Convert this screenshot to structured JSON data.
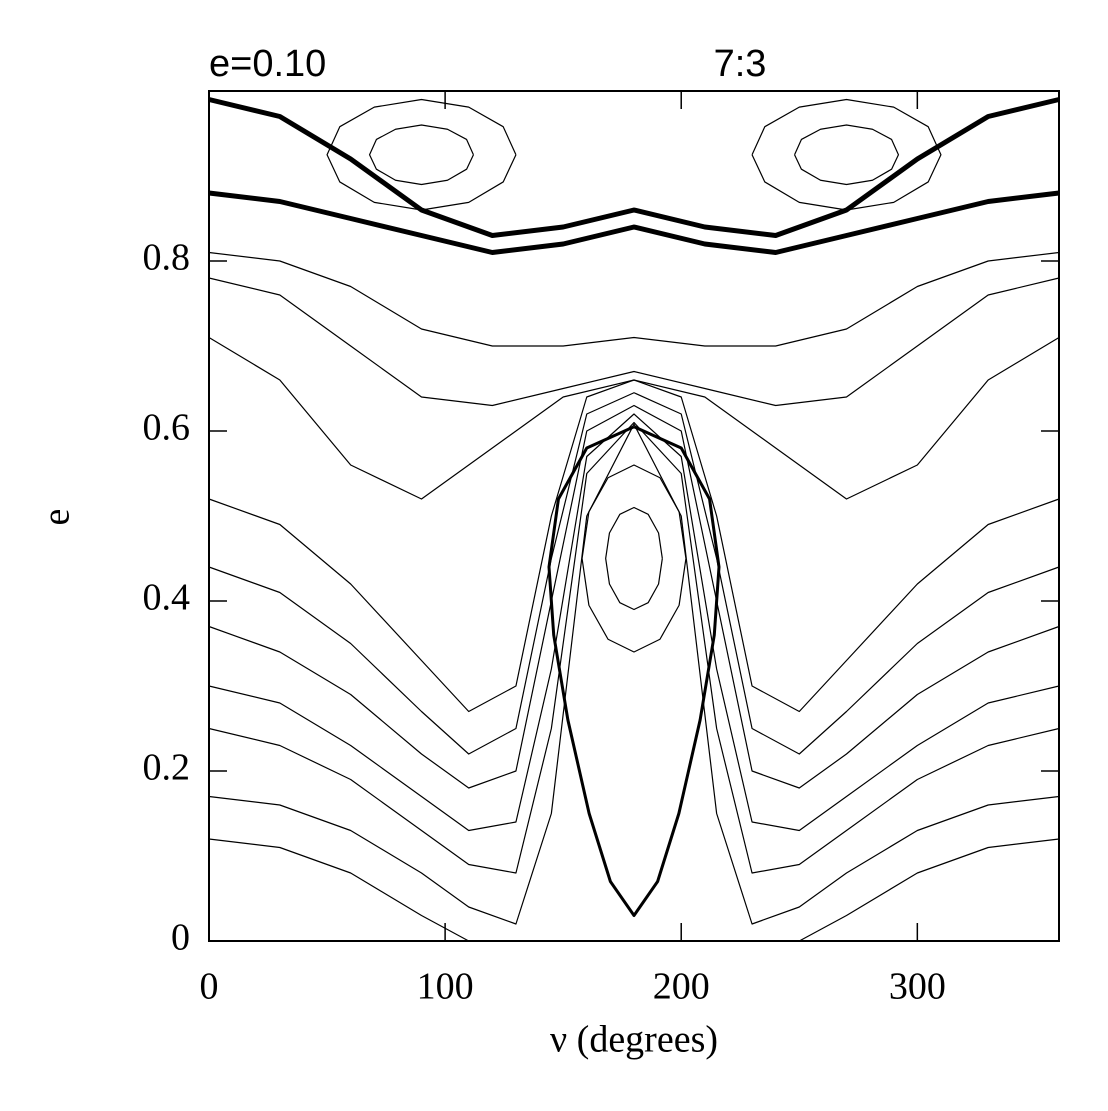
{
  "chart_data": {
    "type": "line",
    "title": "e=0.10",
    "subtitle": "7:3",
    "xlabel": "ν (degrees)",
    "ylabel": "e",
    "xlim": [
      0,
      360
    ],
    "ylim": [
      0,
      1
    ],
    "xticks": [
      0,
      100,
      200,
      300
    ],
    "yticks": [
      0,
      0.2,
      0.4,
      0.6,
      0.8
    ],
    "series": [
      {
        "color": "#000000",
        "x": [
          0,
          30,
          60,
          90,
          120,
          150,
          180,
          210,
          240,
          270,
          300,
          330,
          360
        ],
        "values": [
          0.71,
          0.66,
          0.56,
          0.52,
          0.58,
          0.64,
          0.66,
          0.64,
          0.58,
          0.52,
          0.56,
          0.66,
          0.71
        ]
      },
      {
        "color": "#000000",
        "x": [
          0,
          30,
          60,
          90,
          120,
          150,
          180,
          210,
          240,
          270,
          300,
          330,
          360
        ],
        "values": [
          0.78,
          0.76,
          0.7,
          0.64,
          0.63,
          0.65,
          0.67,
          0.65,
          0.63,
          0.64,
          0.7,
          0.76,
          0.78
        ]
      },
      {
        "color": "#000000",
        "x": [
          0,
          30,
          60,
          90,
          120,
          150,
          180,
          210,
          240,
          270,
          300,
          330,
          360
        ],
        "values": [
          0.81,
          0.8,
          0.77,
          0.72,
          0.7,
          0.7,
          0.71,
          0.7,
          0.7,
          0.72,
          0.77,
          0.8,
          0.81
        ]
      },
      {
        "color": "#000000",
        "width": 5,
        "x": [
          0,
          30,
          60,
          90,
          120,
          150,
          180,
          210,
          240,
          270,
          300,
          330,
          360
        ],
        "values": [
          0.88,
          0.87,
          0.85,
          0.83,
          0.81,
          0.82,
          0.84,
          0.82,
          0.81,
          0.83,
          0.85,
          0.87,
          0.88
        ]
      },
      {
        "color": "#000000",
        "width": 5,
        "x": [
          0,
          30,
          60,
          90,
          120,
          150,
          180,
          210,
          240,
          270,
          300,
          330,
          360
        ],
        "values": [
          0.99,
          0.97,
          0.92,
          0.86,
          0.83,
          0.84,
          0.86,
          0.84,
          0.83,
          0.86,
          0.92,
          0.97,
          0.99
        ]
      },
      {
        "color": "#000000",
        "x": [
          0,
          30,
          60,
          90,
          110,
          130,
          145,
          160,
          180,
          200,
          215,
          230,
          250,
          270,
          300,
          330,
          360
        ],
        "values": [
          0.52,
          0.49,
          0.42,
          0.33,
          0.27,
          0.3,
          0.5,
          0.64,
          0.66,
          0.64,
          0.5,
          0.3,
          0.27,
          0.33,
          0.42,
          0.49,
          0.52
        ]
      },
      {
        "color": "#000000",
        "x": [
          0,
          30,
          60,
          90,
          110,
          130,
          145,
          160,
          180,
          200,
          215,
          230,
          250,
          270,
          300,
          330,
          360
        ],
        "values": [
          0.44,
          0.41,
          0.35,
          0.27,
          0.22,
          0.25,
          0.45,
          0.62,
          0.645,
          0.62,
          0.45,
          0.25,
          0.22,
          0.27,
          0.35,
          0.41,
          0.44
        ]
      },
      {
        "color": "#000000",
        "x": [
          0,
          30,
          60,
          90,
          110,
          130,
          145,
          160,
          180,
          200,
          215,
          230,
          250,
          270,
          300,
          330,
          360
        ],
        "values": [
          0.37,
          0.34,
          0.29,
          0.22,
          0.18,
          0.2,
          0.4,
          0.6,
          0.63,
          0.6,
          0.4,
          0.2,
          0.18,
          0.22,
          0.29,
          0.34,
          0.37
        ]
      },
      {
        "color": "#000000",
        "x": [
          0,
          30,
          60,
          90,
          110,
          130,
          145,
          160,
          180,
          200,
          215,
          230,
          250,
          270,
          300,
          330,
          360
        ],
        "values": [
          0.3,
          0.28,
          0.23,
          0.17,
          0.13,
          0.14,
          0.32,
          0.57,
          0.62,
          0.57,
          0.32,
          0.14,
          0.13,
          0.17,
          0.23,
          0.28,
          0.3
        ]
      },
      {
        "color": "#000000",
        "x": [
          0,
          30,
          60,
          90,
          110,
          130,
          145,
          160,
          180,
          200,
          215,
          230,
          250,
          270,
          300,
          330,
          360
        ],
        "values": [
          0.25,
          0.23,
          0.19,
          0.13,
          0.09,
          0.08,
          0.25,
          0.55,
          0.61,
          0.55,
          0.25,
          0.08,
          0.09,
          0.13,
          0.19,
          0.23,
          0.25
        ]
      },
      {
        "color": "#000000",
        "x": [
          0,
          30,
          60,
          90,
          110,
          130,
          145,
          160,
          180,
          200,
          215,
          230,
          250,
          270,
          300,
          330,
          360
        ],
        "values": [
          0.17,
          0.16,
          0.13,
          0.08,
          0.04,
          0.02,
          0.15,
          0.5,
          0.608,
          0.5,
          0.15,
          0.02,
          0.04,
          0.08,
          0.13,
          0.16,
          0.17
        ]
      },
      {
        "color": "#000000",
        "width": 3,
        "x": [
          180,
          200,
          212,
          216,
          214,
          208,
          199,
          190,
          180,
          170,
          161,
          152,
          146,
          144,
          148,
          160,
          180
        ],
        "values": [
          0.605,
          0.58,
          0.52,
          0.44,
          0.36,
          0.26,
          0.15,
          0.07,
          0.03,
          0.07,
          0.15,
          0.26,
          0.36,
          0.44,
          0.52,
          0.58,
          0.605
        ]
      },
      {
        "color": "#000000",
        "x": [
          202,
          199.1,
          191,
          180,
          169,
          160.9,
          158,
          160.9,
          169,
          180,
          191,
          199.1,
          202
        ],
        "values": [
          0.45,
          0.505,
          0.545,
          0.56,
          0.545,
          0.505,
          0.45,
          0.395,
          0.355,
          0.34,
          0.355,
          0.395,
          0.45
        ]
      },
      {
        "color": "#000000",
        "x": [
          192,
          190.4,
          186,
          180,
          174,
          169.6,
          168,
          169.6,
          174,
          180,
          186,
          190.4,
          192
        ],
        "values": [
          0.45,
          0.48,
          0.502,
          0.51,
          0.502,
          0.48,
          0.45,
          0.42,
          0.398,
          0.39,
          0.398,
          0.42,
          0.45
        ]
      },
      {
        "color": "#000000",
        "x": [
          130,
          124.6,
          110,
          90,
          70,
          55.4,
          50,
          55.4,
          70,
          90,
          110,
          124.6,
          130
        ],
        "values": [
          0.925,
          0.958,
          0.981,
          0.99,
          0.981,
          0.958,
          0.925,
          0.893,
          0.869,
          0.86,
          0.869,
          0.893,
          0.925
        ]
      },
      {
        "color": "#000000",
        "x": [
          112,
          109.1,
          101,
          90,
          79,
          70.9,
          68,
          70.9,
          79,
          90,
          101,
          109.1,
          112
        ],
        "values": [
          0.925,
          0.943,
          0.955,
          0.96,
          0.955,
          0.943,
          0.925,
          0.908,
          0.895,
          0.89,
          0.895,
          0.908,
          0.925
        ]
      },
      {
        "color": "#000000",
        "x": [
          230,
          235.4,
          250,
          270,
          290,
          304.6,
          310,
          304.6,
          290,
          270,
          250,
          235.4,
          230
        ],
        "values": [
          0.925,
          0.958,
          0.981,
          0.99,
          0.981,
          0.958,
          0.925,
          0.893,
          0.869,
          0.86,
          0.869,
          0.893,
          0.925
        ]
      },
      {
        "color": "#000000",
        "x": [
          248,
          250.9,
          259,
          270,
          281,
          289.1,
          292,
          289.1,
          281,
          270,
          259,
          250.9,
          248
        ],
        "values": [
          0.925,
          0.943,
          0.955,
          0.96,
          0.955,
          0.943,
          0.925,
          0.908,
          0.895,
          0.89,
          0.895,
          0.908,
          0.925
        ]
      },
      {
        "color": "#000000",
        "x": [
          0,
          30,
          60,
          90,
          110
        ],
        "values": [
          0.12,
          0.11,
          0.08,
          0.03,
          0
        ]
      },
      {
        "color": "#000000",
        "x": [
          250,
          270,
          300,
          330,
          360
        ],
        "values": [
          0,
          0.03,
          0.08,
          0.11,
          0.12
        ]
      }
    ]
  }
}
